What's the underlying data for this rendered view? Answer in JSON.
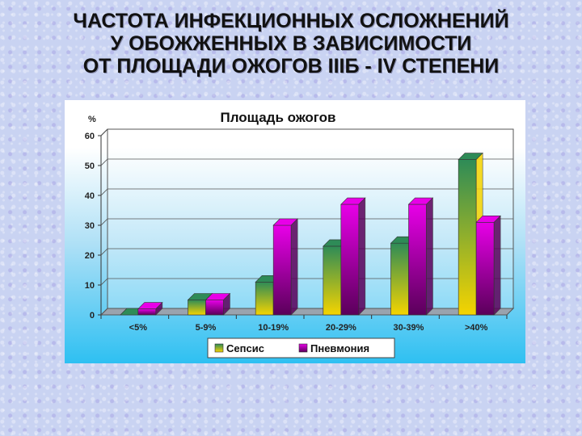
{
  "slide": {
    "title_lines": [
      "ЧАСТОТА ИНФЕКЦИОННЫХ ОСЛОЖНЕНИЙ",
      "У ОБОЖЖЕННЫХ В ЗАВИСИМОСТИ",
      "ОТ ПЛОЩАДИ ОЖОГОВ IIIБ - IV СТЕПЕНИ"
    ]
  },
  "chart_data": {
    "type": "bar",
    "title": "Площадь ожогов",
    "ylabel": "%",
    "xlabel": "",
    "categories": [
      "<5%",
      "5-9%",
      "10-19%",
      "20-29%",
      "30-39%",
      ">40%"
    ],
    "series": [
      {
        "name": "Сепсис",
        "values": [
          0,
          5,
          11,
          23,
          24,
          52
        ],
        "color": "#2e8b57",
        "color_bottom": "#f5d400"
      },
      {
        "name": "Пневмония",
        "values": [
          2,
          5,
          30,
          37,
          37,
          31
        ],
        "color": "#e800e8",
        "color_bottom": "#5a005a"
      }
    ],
    "ylim": [
      0,
      60
    ],
    "yticks": [
      0,
      10,
      20,
      30,
      40,
      50,
      60
    ],
    "grid": true,
    "legend_position": "bottom-center"
  }
}
